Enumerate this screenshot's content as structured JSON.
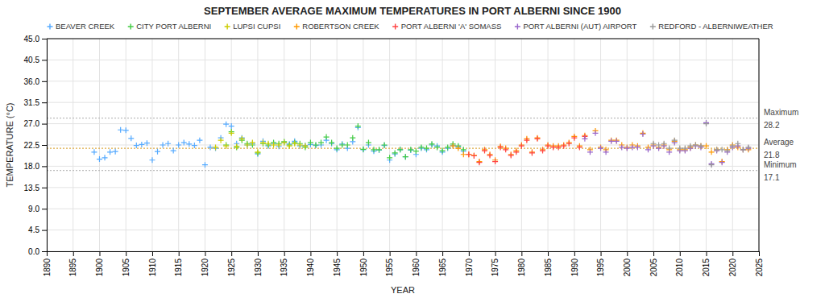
{
  "chart_data": {
    "type": "scatter",
    "title": "SEPTEMBER AVERAGE MAXIMUM TEMPERATURES IN PORT ALBERNI SINCE 1900",
    "xlabel": "YEAR",
    "ylabel": "TEMPERATURE (°C)",
    "xlim": [
      1890,
      2025
    ],
    "ylim": [
      0,
      45
    ],
    "xticks": [
      1890,
      1895,
      1900,
      1905,
      1910,
      1915,
      1920,
      1925,
      1930,
      1935,
      1940,
      1945,
      1950,
      1955,
      1960,
      1965,
      1970,
      1975,
      1980,
      1985,
      1990,
      1995,
      2000,
      2005,
      2010,
      2015,
      2020,
      2025
    ],
    "yticks": [
      {
        "value": 0,
        "label": "0.0"
      },
      4.5,
      {
        "value": 9,
        "label": "9.0"
      },
      13.5,
      {
        "value": 18,
        "label": "18.0"
      },
      22.5,
      {
        "value": 27,
        "label": "27.0"
      },
      31.5,
      {
        "value": 36,
        "label": "36.0"
      },
      40.5,
      {
        "value": 45,
        "label": "45.0"
      }
    ],
    "grid": true,
    "legend": "top",
    "reference_lines": [
      {
        "name": "Maximum",
        "value": 28.2,
        "color": "#bbbbbb",
        "line_style": "dotted"
      },
      {
        "name": "Average",
        "value": 21.8,
        "color": "#ddaa44",
        "line_style": "dotted"
      },
      {
        "name": "Minimum",
        "value": 17.1,
        "color": "#bbbbbb",
        "line_style": "dotted"
      }
    ],
    "series": [
      {
        "name": "BEAVER CREEK",
        "color": "#55aaff",
        "marker": "plus",
        "x": [
          1899,
          1900,
          1901,
          1902,
          1903,
          1904,
          1905,
          1906,
          1907,
          1908,
          1909,
          1910,
          1911,
          1912,
          1913,
          1914,
          1915,
          1916,
          1917,
          1918,
          1919,
          1920,
          1921,
          1922,
          1923,
          1924,
          1925,
          1926,
          1927,
          1928,
          1929,
          1930,
          1931,
          1932,
          1933,
          1934,
          1935,
          1936,
          1937,
          1938,
          1939,
          1940,
          1941,
          1942,
          1943,
          1944,
          1945,
          1946,
          1947,
          1948,
          1949,
          1950,
          1951,
          1952,
          1953,
          1954,
          1955,
          1956,
          1957,
          1958,
          1959,
          1960,
          1961,
          1962,
          1963,
          1964,
          1965,
          1966,
          1967,
          1968,
          1969
        ],
        "values": [
          21.0,
          19.5,
          19.8,
          21.0,
          21.1,
          25.7,
          25.6,
          23.9,
          22.4,
          22.6,
          22.9,
          19.3,
          21.1,
          22.5,
          22.8,
          21.3,
          22.5,
          23.0,
          22.7,
          22.4,
          23.5,
          18.3,
          22.0,
          21.8,
          24.0,
          26.9,
          26.5,
          22.8,
          24.0,
          22.5,
          22.8,
          20.6,
          23.3,
          22.3,
          22.8,
          22.2,
          23.0,
          22.7,
          23.3,
          22.3,
          22.4,
          22.6,
          22.4,
          22.5,
          23.5,
          22.8,
          21.5,
          22.7,
          21.8,
          23.2,
          26.2,
          21.5,
          22.5,
          21.2,
          21.4,
          22.4,
          19.3,
          20.6,
          21.5,
          20.0,
          21.4,
          20.5,
          21.8,
          21.5,
          22.5,
          22.3,
          21.0,
          21.8,
          22.4,
          22.1,
          21.2
        ]
      },
      {
        "name": "CITY PORT ALBERNI",
        "color": "#44cc44",
        "marker": "plus",
        "x": [
          1924,
          1925,
          1926,
          1927,
          1928,
          1929,
          1930,
          1931,
          1932,
          1933,
          1934,
          1935,
          1936,
          1937,
          1938,
          1939,
          1940,
          1941,
          1942,
          1943,
          1944,
          1945,
          1946,
          1947,
          1948,
          1949,
          1950,
          1951,
          1952,
          1953,
          1954,
          1955,
          1956,
          1957,
          1958,
          1959,
          1960,
          1961,
          1962,
          1963,
          1964,
          1965,
          1966,
          1967,
          1968,
          1969
        ],
        "values": [
          22.5,
          25.3,
          22.0,
          23.5,
          22.8,
          22.5,
          20.8,
          22.8,
          22.5,
          23.0,
          22.8,
          23.2,
          22.5,
          23.0,
          22.8,
          22.0,
          23.0,
          22.5,
          23.0,
          24.2,
          23.0,
          21.8,
          22.5,
          22.5,
          24.0,
          26.5,
          21.6,
          23.0,
          21.5,
          21.5,
          22.5,
          19.8,
          20.8,
          21.5,
          20.0,
          21.5,
          21.2,
          22.0,
          21.8,
          22.7,
          22.0,
          21.3,
          22.0,
          22.7,
          22.3,
          21.5
        ]
      },
      {
        "name": "LUPSI CUPSI",
        "color": "#cccc00",
        "marker": "plus",
        "x": [
          1922,
          1923,
          1924,
          1925,
          1926,
          1927,
          1928,
          1929,
          1930,
          1931,
          1932,
          1933,
          1934,
          1935,
          1936,
          1937,
          1938,
          1939
        ],
        "values": [
          22.0,
          23.5,
          22.3,
          25.0,
          22.2,
          23.8,
          22.5,
          23.0,
          21.0,
          23.0,
          22.8,
          22.5,
          22.5,
          23.0,
          22.3,
          22.8,
          22.5,
          22.3
        ]
      },
      {
        "name": "ROBERTSON CREEK",
        "color": "#ff9900",
        "marker": "plus",
        "x": [
          1967,
          1968,
          1969,
          1970,
          1971,
          1972,
          1973,
          1974,
          1975,
          1976,
          1977,
          1978,
          1979,
          1980,
          1981,
          1982,
          1983,
          1984,
          1985,
          1986,
          1987,
          1988,
          1989,
          1990,
          1991,
          1992,
          1993,
          1994,
          1995,
          1996,
          1997,
          1998,
          1999,
          2000,
          2001,
          2002,
          2003,
          2004,
          2005,
          2006,
          2007,
          2008,
          2009,
          2010,
          2011,
          2012,
          2013,
          2014,
          2015,
          2016,
          2017,
          2018,
          2019,
          2020,
          2021,
          2022,
          2023
        ],
        "values": [
          22.3,
          21.8,
          20.5,
          20.5,
          20.3,
          19.0,
          21.5,
          20.5,
          19.3,
          22.2,
          21.8,
          20.5,
          21.3,
          22.5,
          23.8,
          21.0,
          24.0,
          21.5,
          22.5,
          22.3,
          22.3,
          22.5,
          23.0,
          24.3,
          22.3,
          24.5,
          21.5,
          25.5,
          22.0,
          21.5,
          23.5,
          23.5,
          22.5,
          22.0,
          22.5,
          22.3,
          25.0,
          22.0,
          22.5,
          22.0,
          22.5,
          21.5,
          23.3,
          21.5,
          21.5,
          22.0,
          22.5,
          22.3,
          22.3,
          21.0,
          21.5,
          19.0,
          21.5,
          22.5,
          22.0,
          21.5,
          21.5
        ]
      },
      {
        "name": "PORT ALBERNI 'A' SOMASS",
        "color": "#ff4444",
        "marker": "plus",
        "x": [
          1970,
          1971,
          1972,
          1973,
          1974,
          1975,
          1976,
          1977,
          1978,
          1979,
          1980,
          1981,
          1982,
          1983,
          1984,
          1985,
          1986,
          1987,
          1988,
          1989,
          1990,
          1991,
          1992
        ],
        "values": [
          20.5,
          20.2,
          18.8,
          21.3,
          20.3,
          19.0,
          22.0,
          21.5,
          20.3,
          21.0,
          22.3,
          23.5,
          20.8,
          23.8,
          21.3,
          22.3,
          22.0,
          22.0,
          22.3,
          22.8,
          24.0,
          22.0,
          24.3
        ]
      },
      {
        "name": "PORT ALBERNI (AUT) AIRPORT",
        "color": "#9966cc",
        "marker": "plus",
        "x": [
          1992,
          1993,
          1994,
          1995,
          1996,
          1997,
          1998,
          1999,
          2000,
          2001,
          2002,
          2003,
          2004,
          2005,
          2006,
          2007,
          2008,
          2009,
          2010,
          2011,
          2012,
          2013,
          2014,
          2015,
          2016,
          2017,
          2018,
          2019,
          2020,
          2021,
          2022,
          2023
        ],
        "values": [
          23.8,
          21.0,
          25.0,
          21.8,
          21.0,
          23.3,
          23.3,
          22.0,
          21.8,
          22.0,
          22.0,
          24.8,
          21.5,
          22.3,
          21.8,
          22.3,
          21.0,
          23.0,
          21.3,
          21.3,
          21.8,
          22.3,
          22.0,
          27.2,
          18.5,
          21.3,
          18.8,
          21.0,
          22.0,
          22.3,
          21.5,
          21.8
        ]
      },
      {
        "name": "REDFORD - ALBERNIWEATHER",
        "color": "#999999",
        "marker": "plus",
        "x": [
          2005,
          2006,
          2007,
          2008,
          2009,
          2010,
          2011,
          2012,
          2013,
          2014,
          2015,
          2016,
          2017,
          2018,
          2019,
          2020,
          2021,
          2022,
          2023
        ],
        "values": [
          22.8,
          22.5,
          22.8,
          21.8,
          23.5,
          21.8,
          21.8,
          22.3,
          22.5,
          22.3,
          27.0,
          18.3,
          21.5,
          21.5,
          21.3,
          22.3,
          22.8,
          21.5,
          22.0
        ]
      }
    ]
  }
}
